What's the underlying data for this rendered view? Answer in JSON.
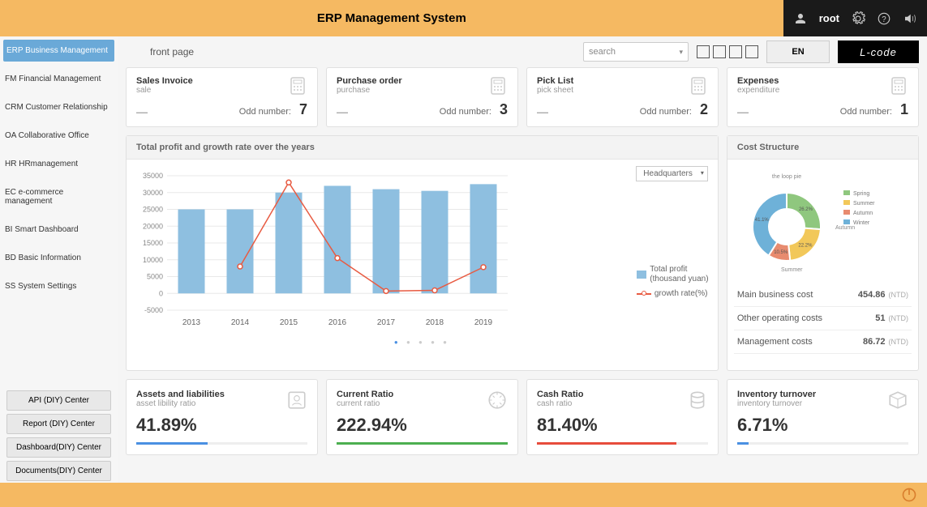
{
  "app_title": "ERP Management System",
  "user": "root",
  "tab": "front page",
  "search_placeholder": "search",
  "lang_label": "EN",
  "brand_label": "L-code",
  "sidebar_main": [
    "ERP Business Management",
    "FM Financial Management",
    "CRM Customer Relationship",
    "OA Collaborative Office",
    "HR HRmanagement",
    "EC e-commerce management",
    "BI Smart Dashboard",
    "BD Basic Information",
    "SS System Settings"
  ],
  "sidebar_active_index": 0,
  "sidebar_diy": [
    "API (DIY) Center",
    "Report (DIY) Center",
    "Dashboard(DIY) Center",
    "Documents(DIY) Center"
  ],
  "kpi_cards": [
    {
      "title": "Sales Invoice",
      "sub": "sale",
      "odd_label": "Odd number:",
      "num": "7"
    },
    {
      "title": "Purchase order",
      "sub": "purchase",
      "odd_label": "Odd number:",
      "num": "3"
    },
    {
      "title": "Pick List",
      "sub": "pick sheet",
      "odd_label": "Odd number:",
      "num": "2"
    },
    {
      "title": "Expenses",
      "sub": "expenditure",
      "odd_label": "Odd number:",
      "num": "1"
    }
  ],
  "main_chart": {
    "title": "Total profit and growth rate over the years",
    "location": "Headquarters",
    "years": [
      "2013",
      "2014",
      "2015",
      "2016",
      "2017",
      "2018",
      "2019"
    ],
    "bars": [
      25000,
      25000,
      30000,
      32000,
      31000,
      30500,
      32500
    ],
    "line": [
      null,
      8000,
      33000,
      10500,
      700,
      900,
      7800
    ],
    "ymin": -5000,
    "ymax": 35000,
    "ystep": 5000,
    "bar_color": "#8ebfe0",
    "line_color": "#e85b42",
    "grid_color": "#e8e8e8",
    "legend1": "Total profit (thousand yuan)",
    "legend2": "growth rate(%)"
  },
  "cost_panel": {
    "title": "Cost Structure",
    "donut_title": "the loop pie",
    "slices": [
      {
        "label": "Spring",
        "value": 26.2,
        "color": "#8fc77e"
      },
      {
        "label": "Summer",
        "value": 22.2,
        "color": "#f2c85a"
      },
      {
        "label": "Autumn",
        "value": 10.5,
        "color": "#e88b6f"
      },
      {
        "label": "Winter",
        "value": 41.1,
        "color": "#6eb1d8"
      }
    ],
    "rows": [
      {
        "label": "Main business cost",
        "value": "454.86",
        "unit": "(NTD)"
      },
      {
        "label": "Other operating costs",
        "value": "51",
        "unit": "(NTD)"
      },
      {
        "label": "Management costs",
        "value": "86.72",
        "unit": "(NTD)"
      }
    ]
  },
  "ratio_cards": [
    {
      "title": "Assets and liabilities",
      "sub": "asset libility ratio",
      "value": "41.89%",
      "pct": 41.89,
      "color": "#4a90e2"
    },
    {
      "title": "Current Ratio",
      "sub": "current ratio",
      "value": "222.94%",
      "pct": 100,
      "color": "#4caf50"
    },
    {
      "title": "Cash Ratio",
      "sub": "cash ratio",
      "value": "81.40%",
      "pct": 81.4,
      "color": "#e74c3c"
    },
    {
      "title": "Inventory turnover",
      "sub": "inventory turnover",
      "value": "6.71%",
      "pct": 6.71,
      "color": "#4a90e2"
    }
  ]
}
